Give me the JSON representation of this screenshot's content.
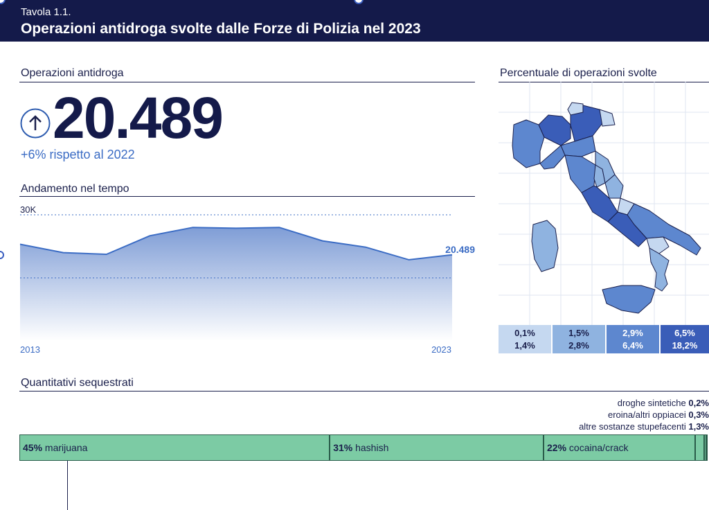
{
  "header": {
    "table_number": "Tavola 1.1.",
    "title": "Operazioni antidroga svolte dalle Forze di Polizia nel 2023"
  },
  "kpi": {
    "section_title": "Operazioni antidroga",
    "value": "20.489",
    "change_text": "+6% rispetto al 2022",
    "trend_icon": "arrow-up-icon"
  },
  "trend": {
    "section_title": "Andamento nel tempo"
  },
  "map": {
    "section_title": "Percentuale di operazioni svolte",
    "legend": [
      {
        "lo": "0,1%",
        "hi": "1,4%",
        "color": "#c5d8f0"
      },
      {
        "lo": "1,5%",
        "hi": "2,8%",
        "color": "#8fb3e0"
      },
      {
        "lo": "2,9%",
        "hi": "6,4%",
        "color": "#5d87cf"
      },
      {
        "lo": "6,5%",
        "hi": "18,2%",
        "color": "#3a5db8"
      }
    ]
  },
  "seizures": {
    "section_title": "Quantitativi sequestrati",
    "segments": [
      {
        "pct": "45%",
        "label": "marijuana",
        "value": 45
      },
      {
        "pct": "31%",
        "label": "hashish",
        "value": 31
      },
      {
        "pct": "22%",
        "label": "cocaina/crack",
        "value": 22
      },
      {
        "pct": "",
        "label": "",
        "value": 1.3
      },
      {
        "pct": "",
        "label": "",
        "value": 0.3
      },
      {
        "pct": "",
        "label": "",
        "value": 0.2
      }
    ],
    "small_labels": [
      {
        "label": "droghe sintetiche",
        "pct": "0,2%"
      },
      {
        "label": "eroina/altri oppiacei",
        "pct": "0,3%"
      },
      {
        "label": "altre sostanze stupefacenti",
        "pct": "1,3%"
      }
    ]
  },
  "chart_data": {
    "type": "area",
    "title": "Andamento nel tempo",
    "x": [
      2013,
      2014,
      2015,
      2016,
      2017,
      2018,
      2019,
      2020,
      2021,
      2022,
      2023
    ],
    "series": [
      {
        "values": [
          23000,
          21000,
          20600,
          25000,
          27000,
          26800,
          27000,
          23800,
          22300,
          19300,
          20489
        ]
      }
    ],
    "x_tick_labels": [
      "2013",
      "2023"
    ],
    "y_tick_labels": [
      "30K"
    ],
    "ylim": [
      0,
      30000
    ],
    "end_label": "20.489",
    "reference_line": 15000,
    "color": "#3b6cc4"
  }
}
